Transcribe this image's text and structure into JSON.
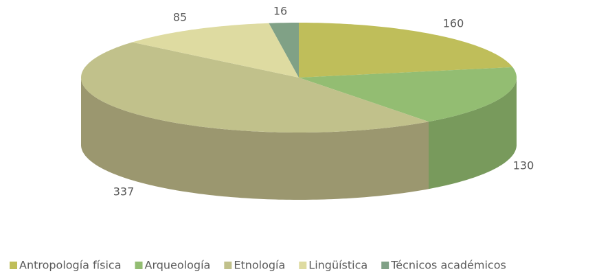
{
  "chart_data": {
    "type": "pie3d",
    "categories": [
      "Antropología física",
      "Arqueología",
      "Etnología",
      "Lingüística",
      "Técnicos académicos"
    ],
    "values": [
      160,
      130,
      337,
      85,
      16
    ],
    "colors": [
      "#bfbe5a",
      "#93bd72",
      "#c1c18b",
      "#dedba1",
      "#80a186"
    ],
    "side_colors": [
      "#9c9b47",
      "#789a5c",
      "#9b976f",
      "#b6b383",
      "#66826c"
    ],
    "legend": "bottom"
  }
}
